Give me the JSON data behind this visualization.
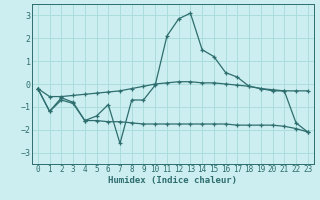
{
  "xlabel": "Humidex (Indice chaleur)",
  "x": [
    0,
    1,
    2,
    3,
    4,
    5,
    6,
    7,
    8,
    9,
    10,
    11,
    12,
    13,
    14,
    15,
    16,
    17,
    18,
    19,
    20,
    21,
    22,
    23
  ],
  "line1": [
    -0.2,
    -1.2,
    -0.6,
    -0.8,
    -1.6,
    -1.4,
    -0.9,
    -2.6,
    -0.7,
    -0.7,
    -0.05,
    2.1,
    2.85,
    3.1,
    1.5,
    1.2,
    0.5,
    0.3,
    -0.1,
    -0.2,
    -0.3,
    -0.3,
    -1.7,
    -2.1
  ],
  "line2": [
    -0.2,
    -1.2,
    -0.7,
    -0.85,
    -1.6,
    -1.6,
    -1.65,
    -1.65,
    -1.7,
    -1.75,
    -1.75,
    -1.75,
    -1.75,
    -1.75,
    -1.75,
    -1.75,
    -1.75,
    -1.8,
    -1.8,
    -1.8,
    -1.8,
    -1.85,
    -1.95,
    -2.1
  ],
  "line3": [
    -0.2,
    -0.55,
    -0.55,
    -0.5,
    -0.45,
    -0.4,
    -0.35,
    -0.3,
    -0.2,
    -0.1,
    0.0,
    0.05,
    0.1,
    0.1,
    0.05,
    0.05,
    0.0,
    -0.05,
    -0.1,
    -0.2,
    -0.25,
    -0.3,
    -0.3,
    -0.3
  ],
  "line_color": "#2e6e6e",
  "background_color": "#cceef0",
  "grid_color": "#aadddd",
  "ylim": [
    -3.5,
    3.5
  ],
  "xlim": [
    -0.5,
    23.5
  ],
  "yticks": [
    -3,
    -2,
    -1,
    0,
    1,
    2,
    3
  ],
  "xticks": [
    0,
    1,
    2,
    3,
    4,
    5,
    6,
    7,
    8,
    9,
    10,
    11,
    12,
    13,
    14,
    15,
    16,
    17,
    18,
    19,
    20,
    21,
    22,
    23
  ]
}
